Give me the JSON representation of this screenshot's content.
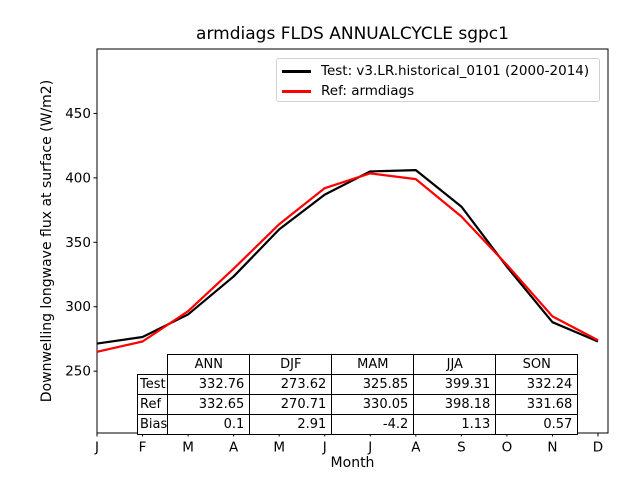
{
  "chart_data": {
    "type": "line",
    "title": "armdiags FLDS ANNUALCYCLE sgpc1",
    "xlabel": "Month",
    "ylabel": "Downwelling longwave flux at surface (W/m2)",
    "x_ticklabels": [
      "J",
      "F",
      "M",
      "A",
      "M",
      "J",
      "J",
      "A",
      "S",
      "O",
      "N",
      "D"
    ],
    "y_ticks": [
      250,
      300,
      350,
      400,
      450
    ],
    "ylim": [
      202,
      500
    ],
    "grid": false,
    "legend_position": "upper right",
    "series": [
      {
        "name": "Test: v3.LR.historical_0101 (2000-2014)",
        "color": "#000000",
        "values": [
          271.4,
          276.5,
          294.0,
          323.5,
          360.0,
          387.0,
          405.0,
          406.0,
          377.7,
          331.0,
          288.0,
          273.0
        ]
      },
      {
        "name": "Ref: armdiags",
        "color": "#ff0000",
        "values": [
          265.0,
          273.0,
          296.5,
          329.5,
          364.0,
          392.0,
          403.5,
          399.0,
          370.0,
          332.5,
          292.5,
          274.0
        ]
      }
    ]
  },
  "stats_table": {
    "col_headers": [
      "ANN",
      "DJF",
      "MAM",
      "JJA",
      "SON"
    ],
    "rows": [
      {
        "label": "Test",
        "values": [
          "332.76",
          "273.62",
          "325.85",
          "399.31",
          "332.24"
        ]
      },
      {
        "label": "Ref",
        "values": [
          "332.65",
          "270.71",
          "330.05",
          "398.18",
          "331.68"
        ]
      },
      {
        "label": "Bias",
        "values": [
          "0.1",
          "2.91",
          "-4.2",
          "1.13",
          "0.57"
        ]
      }
    ]
  }
}
